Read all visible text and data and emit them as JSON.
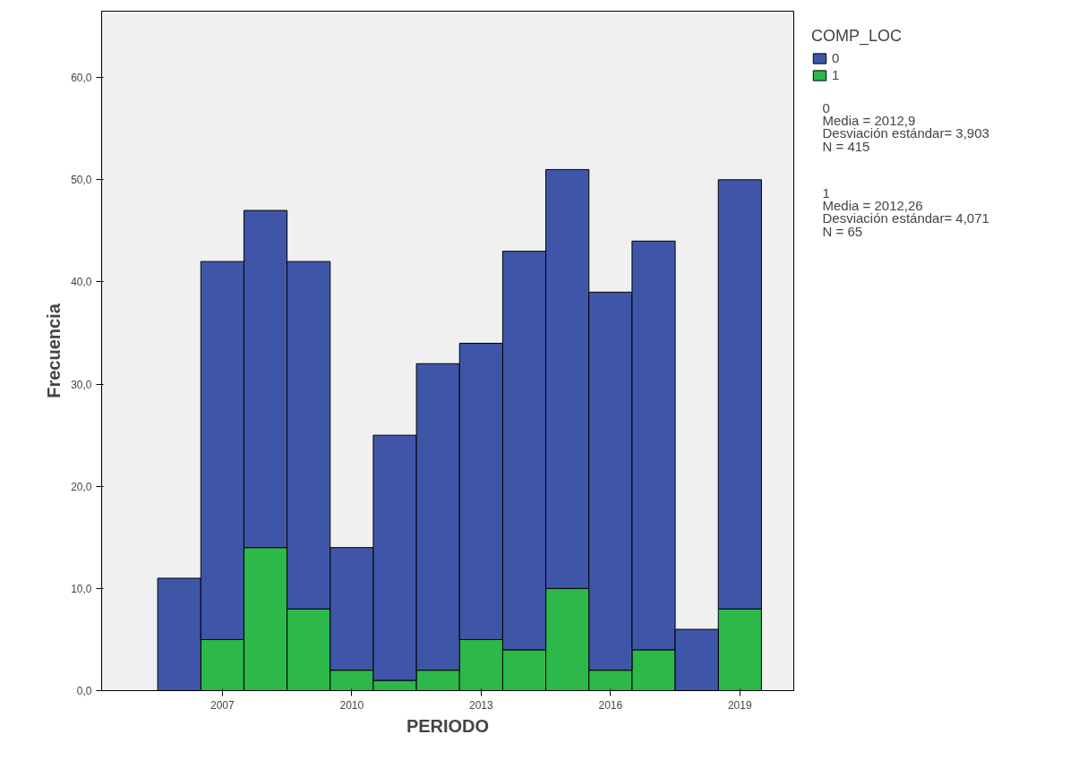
{
  "chart_data": {
    "type": "bar",
    "xlabel": "PERIODO",
    "ylabel": "Frecuencia",
    "legend_title": "COMP_LOC",
    "x": [
      2006,
      2007,
      2008,
      2009,
      2010,
      2011,
      2012,
      2013,
      2014,
      2015,
      2016,
      2017,
      2018,
      2019
    ],
    "stacked": true,
    "series": [
      {
        "name": "1",
        "color": "#2db84a",
        "values": [
          0,
          5,
          14,
          8,
          2,
          1,
          2,
          5,
          4,
          10,
          2,
          4,
          0,
          8
        ]
      },
      {
        "name": "0",
        "color": "#3f56a8",
        "values": [
          11,
          37,
          33,
          34,
          12,
          24,
          30,
          29,
          39,
          41,
          37,
          40,
          6,
          42
        ]
      }
    ],
    "xlim": [
      2004.2,
      2020.25
    ],
    "xticks": [
      2007,
      2010,
      2013,
      2016,
      2019
    ],
    "ylim": [
      0,
      66.5
    ],
    "yticks": [
      {
        "value": 0,
        "label": "0,0"
      },
      {
        "value": 10,
        "label": "10,0"
      },
      {
        "value": 20,
        "label": "20,0"
      },
      {
        "value": 30,
        "label": "30,0"
      },
      {
        "value": 40,
        "label": "40,0"
      },
      {
        "value": 50,
        "label": "50,0"
      },
      {
        "value": 60,
        "label": "60,0"
      }
    ],
    "legend": "right",
    "annotations": [
      "0\nMedia = 2012,9\nDesviación estándar= 3,903\nN = 415",
      "1\nMedia = 2012,26\nDesviación estándar= 4,071\nN = 65"
    ]
  }
}
